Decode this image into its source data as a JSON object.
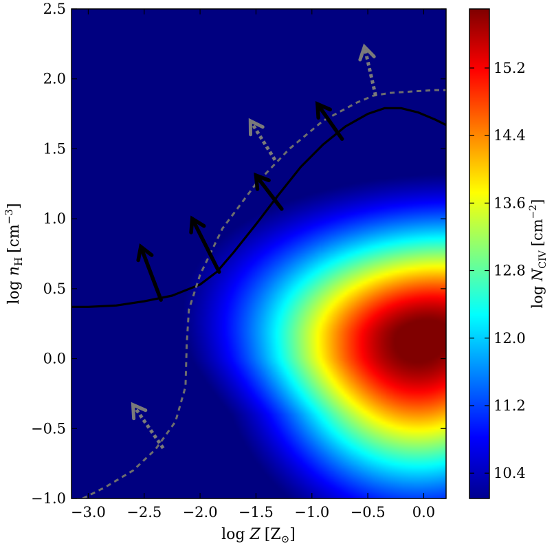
{
  "chart_data": {
    "type": "heatmap",
    "x": {
      "label_pre": "log ",
      "label_var": "Z",
      "label_unit": "[Z",
      "label_unit_sub": "⊙",
      "label_close": "]",
      "lim": [
        -3.15,
        0.2
      ],
      "ticks": [
        -3.0,
        -2.5,
        -2.0,
        -1.5,
        -1.0,
        -0.5,
        0.0
      ],
      "tick_labels": [
        "−3.0",
        "−2.5",
        "−2.0",
        "−1.5",
        "−1.0",
        "−0.5",
        "0.0"
      ]
    },
    "y": {
      "label_pre": "log ",
      "label_var": "n",
      "label_sub": "H",
      "label_unit": "[cm",
      "label_unit_sup": "−3",
      "label_close": "]",
      "lim": [
        -1.0,
        2.5
      ],
      "ticks": [
        -1.0,
        -0.5,
        0.0,
        0.5,
        1.0,
        1.5,
        2.0,
        2.5
      ],
      "tick_labels": [
        "−1.0",
        "−0.5",
        "0.0",
        "0.5",
        "1.0",
        "1.5",
        "2.0",
        "2.5"
      ]
    },
    "colorbar": {
      "label_pre": "log ",
      "label_var": "N",
      "label_sub": "CIV",
      "label_unit": "[cm",
      "label_unit_sup": "−2",
      "label_close": "]",
      "lim": [
        10.1,
        15.9
      ],
      "ticks": [
        10.4,
        11.2,
        12.0,
        12.8,
        13.6,
        14.4,
        15.2
      ],
      "tick_labels": [
        "10.4",
        "11.2",
        "12.0",
        "12.8",
        "13.6",
        "14.4",
        "15.2"
      ],
      "colormap": "jet"
    },
    "series": [
      {
        "style": "solid",
        "color": "#000000",
        "x": [
          -3.15,
          -3.0,
          -2.75,
          -2.5,
          -2.25,
          -2.0,
          -1.85,
          -1.7,
          -1.5,
          -1.3,
          -1.1,
          -0.9,
          -0.7,
          -0.5,
          -0.35,
          -0.2,
          -0.05,
          0.1,
          0.2
        ],
        "y": [
          0.37,
          0.37,
          0.38,
          0.41,
          0.45,
          0.53,
          0.62,
          0.76,
          0.96,
          1.17,
          1.37,
          1.53,
          1.66,
          1.75,
          1.79,
          1.79,
          1.76,
          1.71,
          1.67
        ]
      },
      {
        "style": "dashed",
        "color": "#6e6e6e",
        "x": [
          -3.05,
          -2.85,
          -2.6,
          -2.4,
          -2.22,
          -2.13,
          -2.12,
          -2.1,
          -2.0,
          -1.8,
          -1.5,
          -1.2,
          -0.9,
          -0.6,
          -0.45,
          -0.3,
          -0.1,
          0.1,
          0.2
        ],
        "y": [
          -1.0,
          -0.92,
          -0.8,
          -0.65,
          -0.45,
          -0.2,
          0.1,
          0.35,
          0.6,
          0.93,
          1.25,
          1.5,
          1.7,
          1.83,
          1.88,
          1.9,
          1.91,
          1.92,
          1.92
        ]
      }
    ],
    "arrows": [
      {
        "style": "solid",
        "color": "#000000",
        "x0": -2.35,
        "y0": 0.42,
        "x1": -2.53,
        "y1": 0.8
      },
      {
        "style": "solid",
        "color": "#000000",
        "x0": -1.83,
        "y0": 0.62,
        "x1": -2.07,
        "y1": 1.0
      },
      {
        "style": "solid",
        "color": "#000000",
        "x0": -1.27,
        "y0": 1.07,
        "x1": -1.5,
        "y1": 1.31
      },
      {
        "style": "solid",
        "color": "#000000",
        "x0": -0.73,
        "y0": 1.57,
        "x1": -0.95,
        "y1": 1.82
      },
      {
        "style": "dashed",
        "color": "#7a7a7a",
        "x0": -2.33,
        "y0": -0.64,
        "x1": -2.6,
        "y1": -0.33
      },
      {
        "style": "dashed",
        "color": "#7a7a7a",
        "x0": -1.33,
        "y0": 1.42,
        "x1": -1.55,
        "y1": 1.7
      },
      {
        "style": "dashed",
        "color": "#7a7a7a",
        "x0": -0.43,
        "y0": 1.88,
        "x1": -0.53,
        "y1": 2.23
      }
    ]
  }
}
